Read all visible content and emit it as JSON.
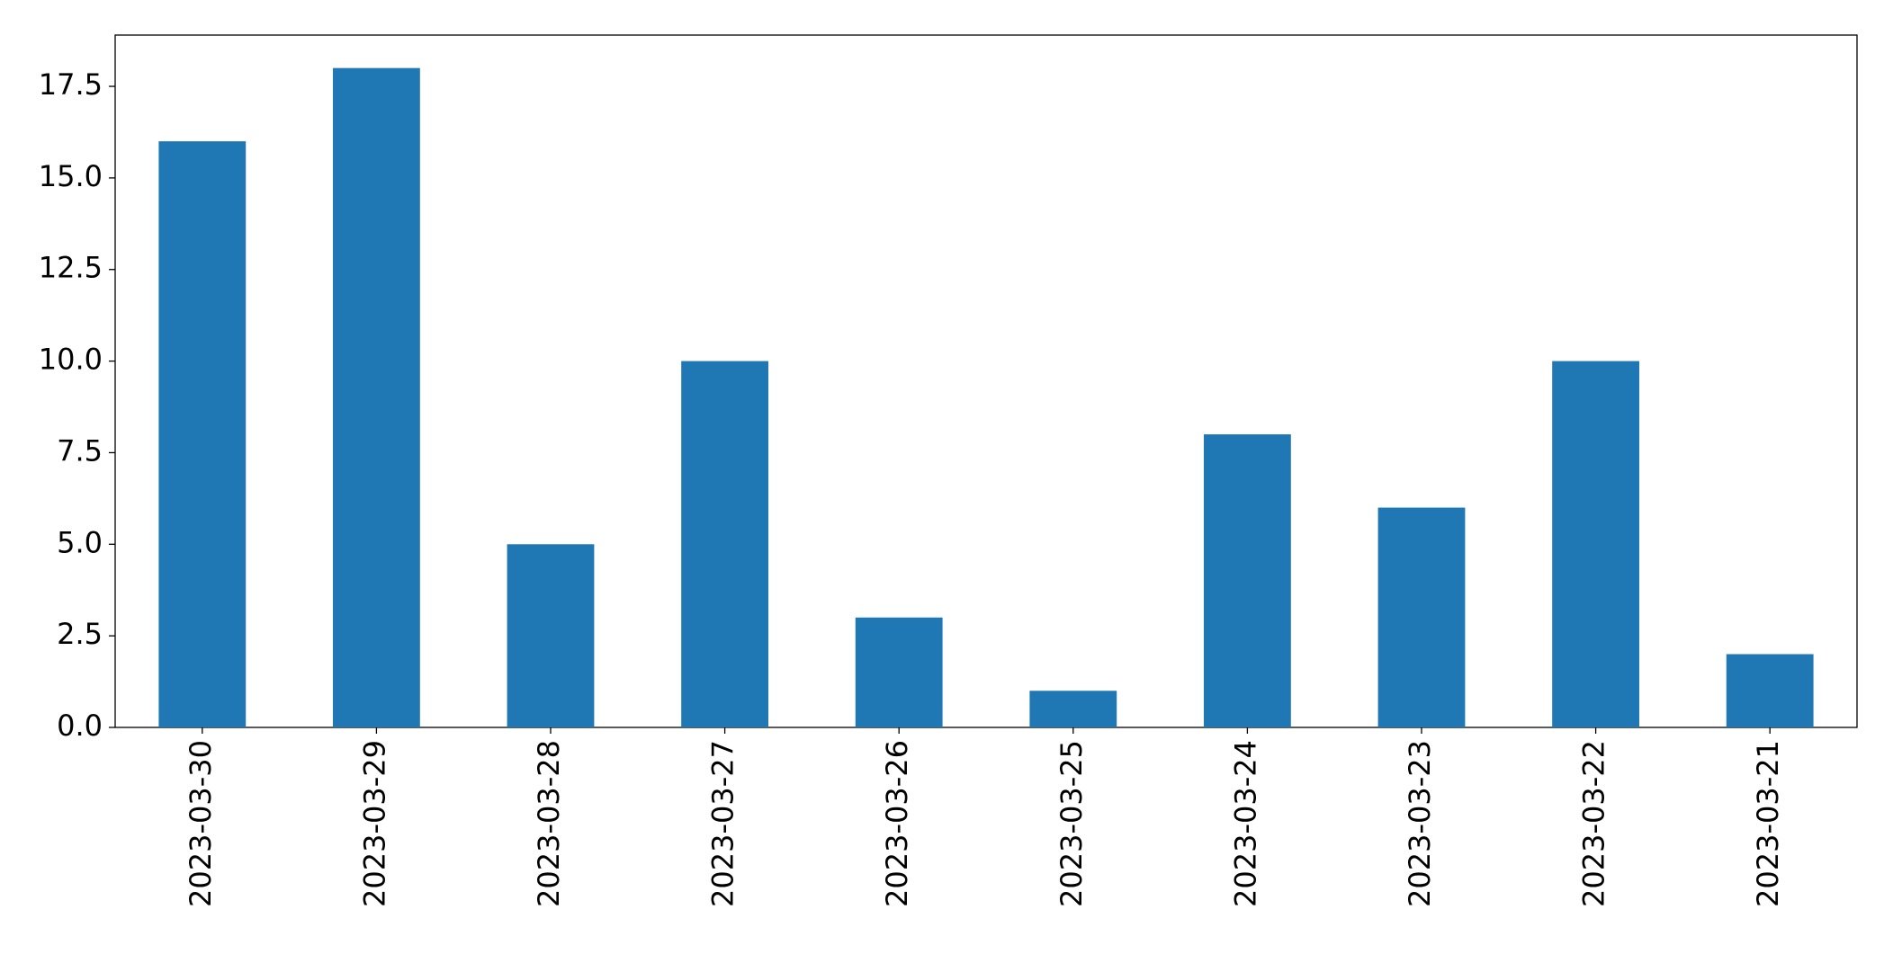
{
  "chart_data": {
    "type": "bar",
    "categories": [
      "2023-03-30",
      "2023-03-29",
      "2023-03-28",
      "2023-03-27",
      "2023-03-26",
      "2023-03-25",
      "2023-03-24",
      "2023-03-23",
      "2023-03-22",
      "2023-03-21"
    ],
    "values": [
      16,
      18,
      5,
      10,
      3,
      1,
      8,
      6,
      10,
      2
    ],
    "color": "#1f77b4",
    "ylim": [
      0,
      18.9
    ],
    "yticks": [
      {
        "value": 0,
        "label": "0.0"
      },
      2.5,
      {
        "value": 5,
        "label": "5.0"
      },
      7.5,
      {
        "value": 10,
        "label": "10.0"
      },
      12.5,
      {
        "value": 15,
        "label": "15.0"
      },
      17.5
    ],
    "grid": false
  }
}
